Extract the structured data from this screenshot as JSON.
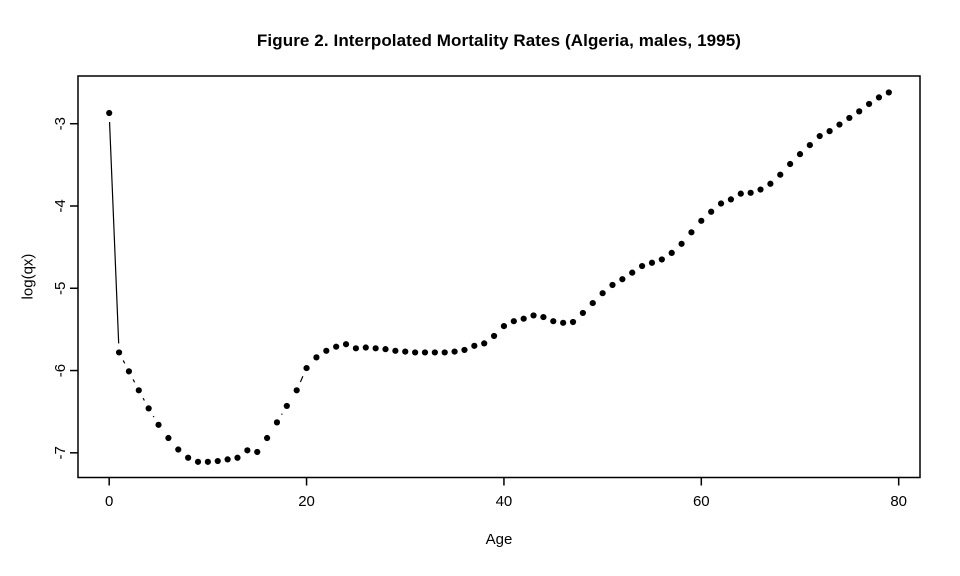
{
  "figure": {
    "background_color": "#ffffff",
    "foreground_color": "#000000"
  },
  "chart_data": {
    "type": "scatter",
    "title": "Figure 2. Interpolated Mortality Rates (Algeria, males, 1995)",
    "xlabel": "Age",
    "ylabel": "log(qx)",
    "xlim": [
      -3.16,
      82.16
    ],
    "ylim": [
      -7.3,
      -2.42
    ],
    "xticks": [
      0,
      20,
      40,
      60,
      80
    ],
    "yticks": [
      -3,
      -4,
      -5,
      -6,
      -7
    ],
    "grid": false,
    "legend": "none",
    "marker": {
      "shape": "filled-circle",
      "radius": 3.1,
      "color": "#000000"
    },
    "line": {
      "style": "segments-with-point-gaps",
      "color": "#000000",
      "width": 1.2,
      "point_gap": 9
    },
    "x": [
      0,
      1,
      2,
      3,
      4,
      5,
      6,
      7,
      8,
      9,
      10,
      11,
      12,
      13,
      14,
      15,
      16,
      17,
      18,
      19,
      20,
      21,
      22,
      23,
      24,
      25,
      26,
      27,
      28,
      29,
      30,
      31,
      32,
      33,
      34,
      35,
      36,
      37,
      38,
      39,
      40,
      41,
      42,
      43,
      44,
      45,
      46,
      47,
      48,
      49,
      50,
      51,
      52,
      53,
      54,
      55,
      56,
      57,
      58,
      59,
      60,
      61,
      62,
      63,
      64,
      65,
      66,
      67,
      68,
      69,
      70,
      71,
      72,
      73,
      74,
      75,
      76,
      77,
      78,
      79
    ],
    "y": [
      -2.87,
      -5.78,
      -6.01,
      -6.24,
      -6.46,
      -6.66,
      -6.82,
      -6.96,
      -7.06,
      -7.11,
      -7.11,
      -7.1,
      -7.08,
      -7.06,
      -6.97,
      -6.99,
      -6.82,
      -6.63,
      -6.43,
      -6.24,
      -5.97,
      -5.84,
      -5.76,
      -5.71,
      -5.68,
      -5.73,
      -5.72,
      -5.73,
      -5.74,
      -5.76,
      -5.77,
      -5.78,
      -5.78,
      -5.78,
      -5.78,
      -5.77,
      -5.75,
      -5.7,
      -5.67,
      -5.58,
      -5.46,
      -5.4,
      -5.37,
      -5.33,
      -5.35,
      -5.4,
      -5.42,
      -5.41,
      -5.3,
      -5.18,
      -5.06,
      -4.96,
      -4.89,
      -4.81,
      -4.73,
      -4.69,
      -4.65,
      -4.57,
      -4.46,
      -4.32,
      -4.18,
      -4.07,
      -3.97,
      -3.92,
      -3.85,
      -3.84,
      -3.8,
      -3.73,
      -3.62,
      -3.49,
      -3.37,
      -3.26,
      -3.15,
      -3.09,
      -3.01,
      -2.93,
      -2.85,
      -2.76,
      -2.68,
      -2.62
    ]
  }
}
